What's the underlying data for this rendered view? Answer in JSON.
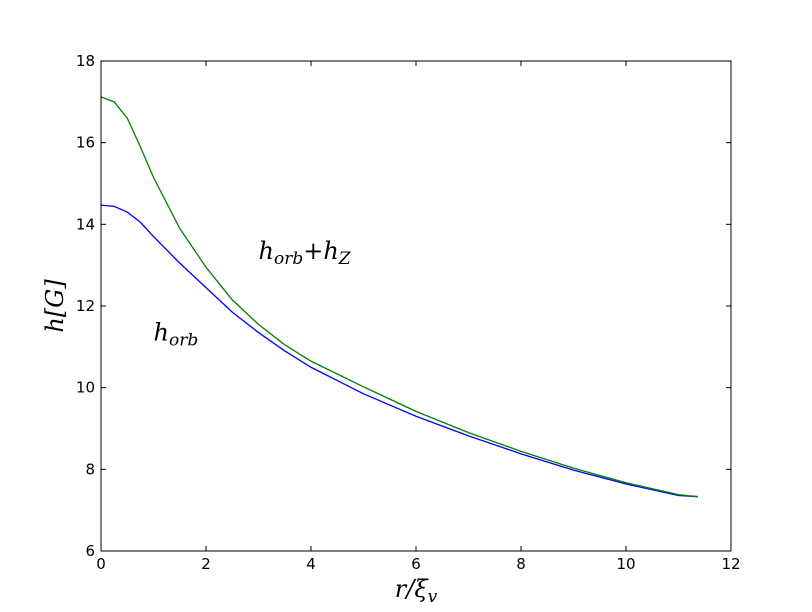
{
  "chart_data": {
    "type": "line",
    "xlabel": [
      {
        "text": "r/ξ"
      },
      {
        "text": "v",
        "sub": true
      }
    ],
    "ylabel": [
      {
        "text": "h[G]"
      }
    ],
    "annotations": [
      [
        {
          "text": "h"
        },
        {
          "text": "orb",
          "sub": true
        },
        {
          "text": "+h"
        },
        {
          "text": "Z",
          "sub": true
        }
      ],
      [
        {
          "text": "h"
        },
        {
          "text": "orb",
          "sub": true
        }
      ]
    ],
    "x": [
      0,
      0.25,
      0.5,
      0.75,
      1,
      1.5,
      2,
      2.5,
      3,
      3.5,
      4,
      5,
      6,
      7,
      8,
      9,
      10,
      11,
      11.37
    ],
    "series": [
      {
        "name": "h_orb",
        "color": "#0000ff",
        "values": [
          14.47,
          14.44,
          14.3,
          14.05,
          13.7,
          13.05,
          12.45,
          11.85,
          11.35,
          10.9,
          10.5,
          9.85,
          9.3,
          8.82,
          8.38,
          7.98,
          7.64,
          7.36,
          7.33
        ]
      },
      {
        "name": "h_orb+h_Z",
        "color": "#008000",
        "values": [
          17.12,
          17.0,
          16.6,
          15.9,
          15.15,
          13.9,
          12.95,
          12.15,
          11.55,
          11.05,
          10.65,
          10.02,
          9.42,
          8.9,
          8.44,
          8.03,
          7.67,
          7.38,
          7.33
        ]
      }
    ],
    "xlim": [
      0,
      12
    ],
    "xticks": [
      0,
      2,
      4,
      6,
      8,
      10,
      12
    ],
    "ylim": [
      6,
      18
    ],
    "yticks": [
      6,
      8,
      10,
      12,
      14,
      16,
      18
    ],
    "legend": false
  }
}
